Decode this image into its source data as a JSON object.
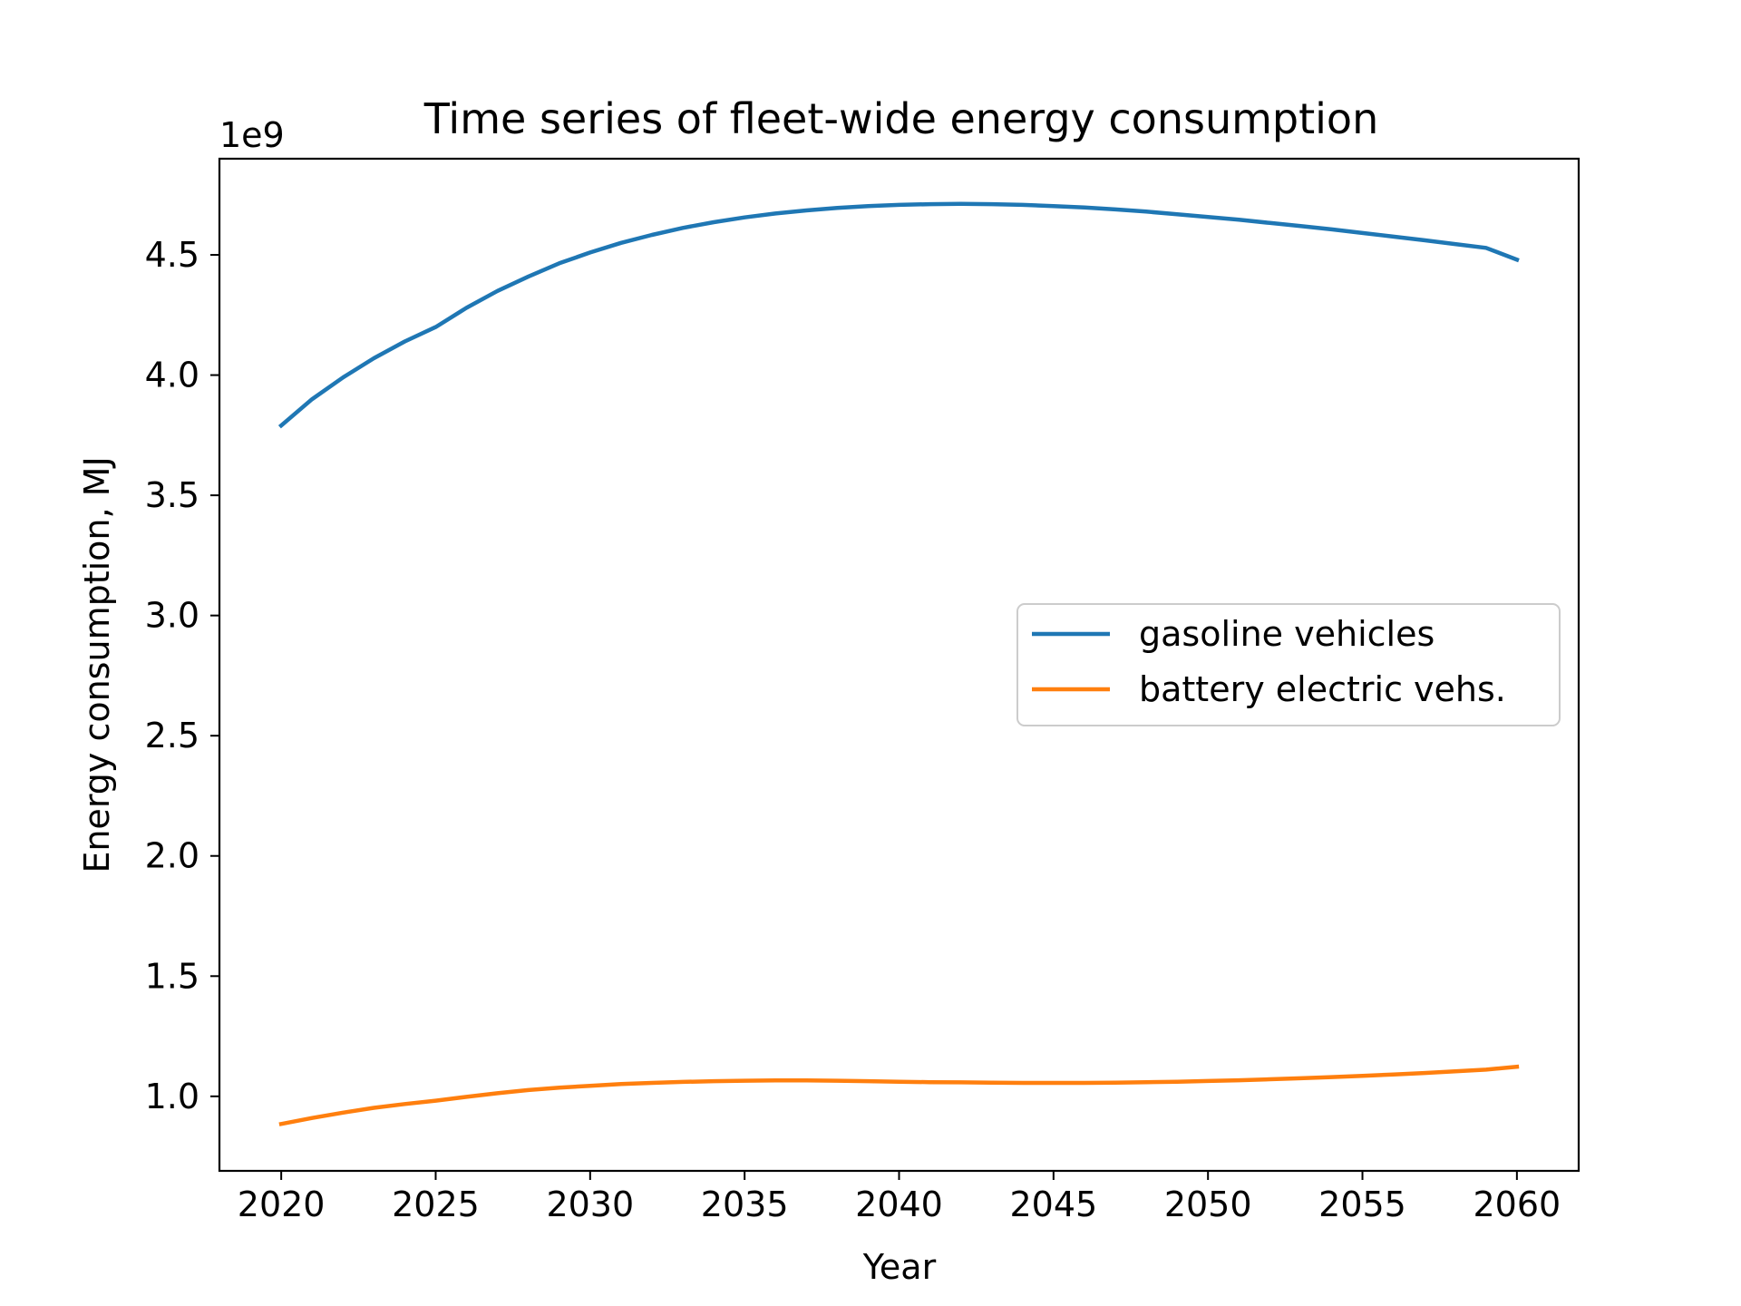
{
  "chart_data": {
    "type": "line",
    "title": "Time series of fleet-wide energy consumption",
    "xlabel": "Year",
    "ylabel": "Energy consumption, MJ",
    "y_offset_label": "1e9",
    "xlim": [
      2018,
      2062
    ],
    "ylim": [
      0.69,
      4.9
    ],
    "x_ticks": [
      2020,
      2025,
      2030,
      2035,
      2040,
      2045,
      2050,
      2055,
      2060
    ],
    "y_ticks": [
      1.0,
      1.5,
      2.0,
      2.5,
      3.0,
      3.5,
      4.0,
      4.5
    ],
    "y_tick_labels": [
      "1.0",
      "1.5",
      "2.0",
      "2.5",
      "3.0",
      "3.5",
      "4.0",
      "4.5"
    ],
    "grid": false,
    "legend_position": "center-right",
    "x": [
      2020,
      2021,
      2022,
      2023,
      2024,
      2025,
      2026,
      2027,
      2028,
      2029,
      2030,
      2031,
      2032,
      2033,
      2034,
      2035,
      2036,
      2037,
      2038,
      2039,
      2040,
      2041,
      2042,
      2043,
      2044,
      2045,
      2046,
      2047,
      2048,
      2049,
      2050,
      2051,
      2052,
      2053,
      2054,
      2055,
      2056,
      2057,
      2058,
      2059,
      2060
    ],
    "series": [
      {
        "name": "gasoline vehicles",
        "color": "#1f77b4",
        "values": [
          3.79,
          3.9,
          3.99,
          4.07,
          4.14,
          4.2,
          4.28,
          4.35,
          4.41,
          4.465,
          4.51,
          4.55,
          4.583,
          4.612,
          4.636,
          4.656,
          4.672,
          4.685,
          4.695,
          4.703,
          4.708,
          4.711,
          4.712,
          4.711,
          4.708,
          4.703,
          4.697,
          4.689,
          4.68,
          4.669,
          4.658,
          4.646,
          4.633,
          4.62,
          4.606,
          4.591,
          4.576,
          4.561,
          4.545,
          4.529,
          4.48
        ]
      },
      {
        "name": "battery electric vehs.",
        "color": "#ff7f0e",
        "values": [
          0.885,
          0.91,
          0.932,
          0.952,
          0.968,
          0.982,
          0.998,
          1.013,
          1.026,
          1.036,
          1.044,
          1.051,
          1.056,
          1.06,
          1.063,
          1.065,
          1.066,
          1.066,
          1.065,
          1.063,
          1.061,
          1.059,
          1.058,
          1.057,
          1.056,
          1.056,
          1.056,
          1.057,
          1.059,
          1.061,
          1.064,
          1.067,
          1.071,
          1.075,
          1.08,
          1.085,
          1.091,
          1.097,
          1.104,
          1.111,
          1.123
        ]
      }
    ]
  }
}
